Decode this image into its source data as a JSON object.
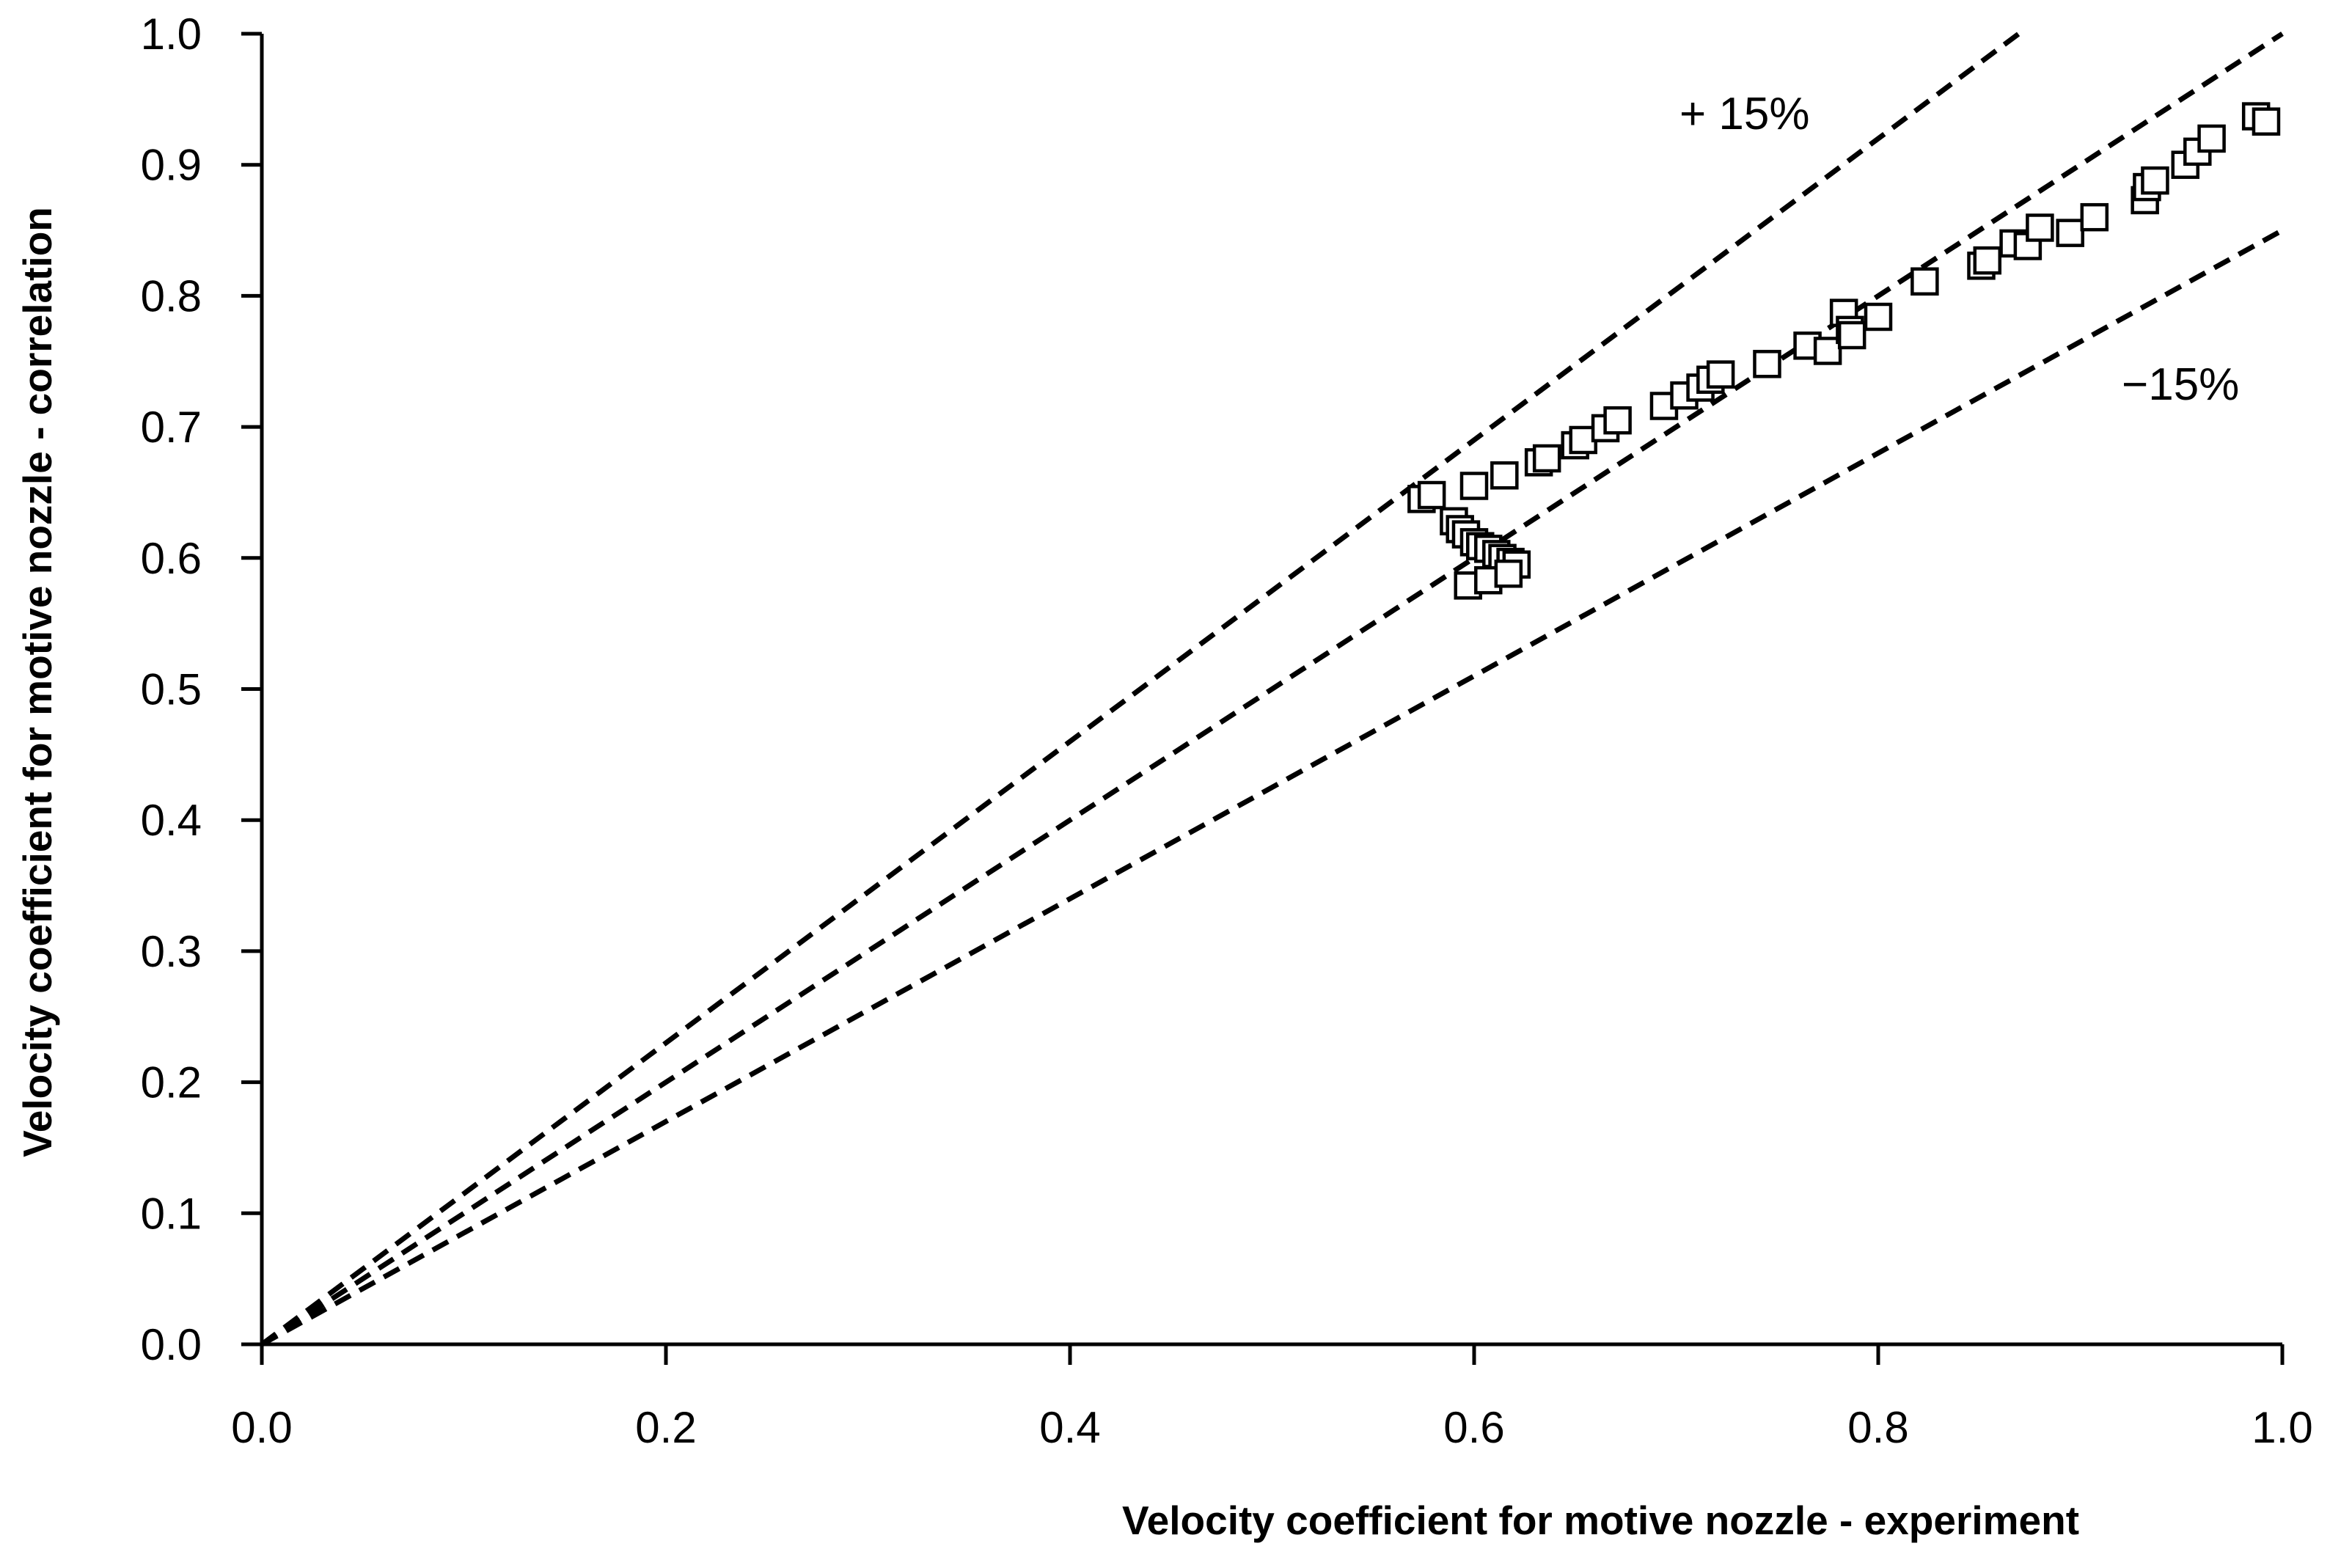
{
  "chart_data": {
    "type": "scatter",
    "title": "",
    "xlabel": "Velocity coefficient for  motive nozzle - experiment",
    "ylabel": "Velocity coefficient for  motive nozzle  - correlation",
    "xlim": [
      0.0,
      1.0
    ],
    "ylim": [
      0.0,
      1.0
    ],
    "x_ticks": [
      "0.0",
      "0.2",
      "0.4",
      "0.6",
      "0.8",
      "1.0"
    ],
    "y_ticks": [
      "0.0",
      "0.1",
      "0.2",
      "0.3",
      "0.4",
      "0.5",
      "0.6",
      "0.7",
      "0.8",
      "0.9",
      "1.0"
    ],
    "grid": false,
    "reference_lines": [
      {
        "name": "+ 15%",
        "slope": 1.15,
        "style": "dashed"
      },
      {
        "name": "y = x",
        "slope": 1.0,
        "style": "dashed"
      },
      {
        "name": "−15%",
        "slope": 0.85,
        "style": "dashed"
      }
    ],
    "annotations": [
      "+ 15%",
      "−15%"
    ],
    "series": [
      {
        "name": "data",
        "marker": "open-square",
        "points": [
          [
            0.574,
            0.645
          ],
          [
            0.579,
            0.648
          ],
          [
            0.59,
            0.628
          ],
          [
            0.593,
            0.622
          ],
          [
            0.596,
            0.618
          ],
          [
            0.6,
            0.612
          ],
          [
            0.603,
            0.609
          ],
          [
            0.607,
            0.607
          ],
          [
            0.611,
            0.603
          ],
          [
            0.614,
            0.6
          ],
          [
            0.618,
            0.597
          ],
          [
            0.621,
            0.595
          ],
          [
            0.597,
            0.579
          ],
          [
            0.607,
            0.583
          ],
          [
            0.617,
            0.588
          ],
          [
            0.6,
            0.655
          ],
          [
            0.615,
            0.663
          ],
          [
            0.632,
            0.673
          ],
          [
            0.636,
            0.676
          ],
          [
            0.65,
            0.686
          ],
          [
            0.654,
            0.69
          ],
          [
            0.665,
            0.699
          ],
          [
            0.671,
            0.705
          ],
          [
            0.694,
            0.716
          ],
          [
            0.704,
            0.724
          ],
          [
            0.712,
            0.73
          ],
          [
            0.717,
            0.736
          ],
          [
            0.722,
            0.74
          ],
          [
            0.745,
            0.748
          ],
          [
            0.765,
            0.762
          ],
          [
            0.775,
            0.758
          ],
          [
            0.783,
            0.787
          ],
          [
            0.786,
            0.774
          ],
          [
            0.787,
            0.77
          ],
          [
            0.8,
            0.784
          ],
          [
            0.823,
            0.811
          ],
          [
            0.851,
            0.823
          ],
          [
            0.854,
            0.827
          ],
          [
            0.867,
            0.84
          ],
          [
            0.874,
            0.838
          ],
          [
            0.88,
            0.852
          ],
          [
            0.895,
            0.848
          ],
          [
            0.907,
            0.86
          ],
          [
            0.932,
            0.873
          ],
          [
            0.933,
            0.883
          ],
          [
            0.937,
            0.888
          ],
          [
            0.952,
            0.9
          ],
          [
            0.958,
            0.91
          ],
          [
            0.965,
            0.92
          ],
          [
            0.987,
            0.937
          ],
          [
            0.992,
            0.933
          ]
        ]
      }
    ]
  }
}
